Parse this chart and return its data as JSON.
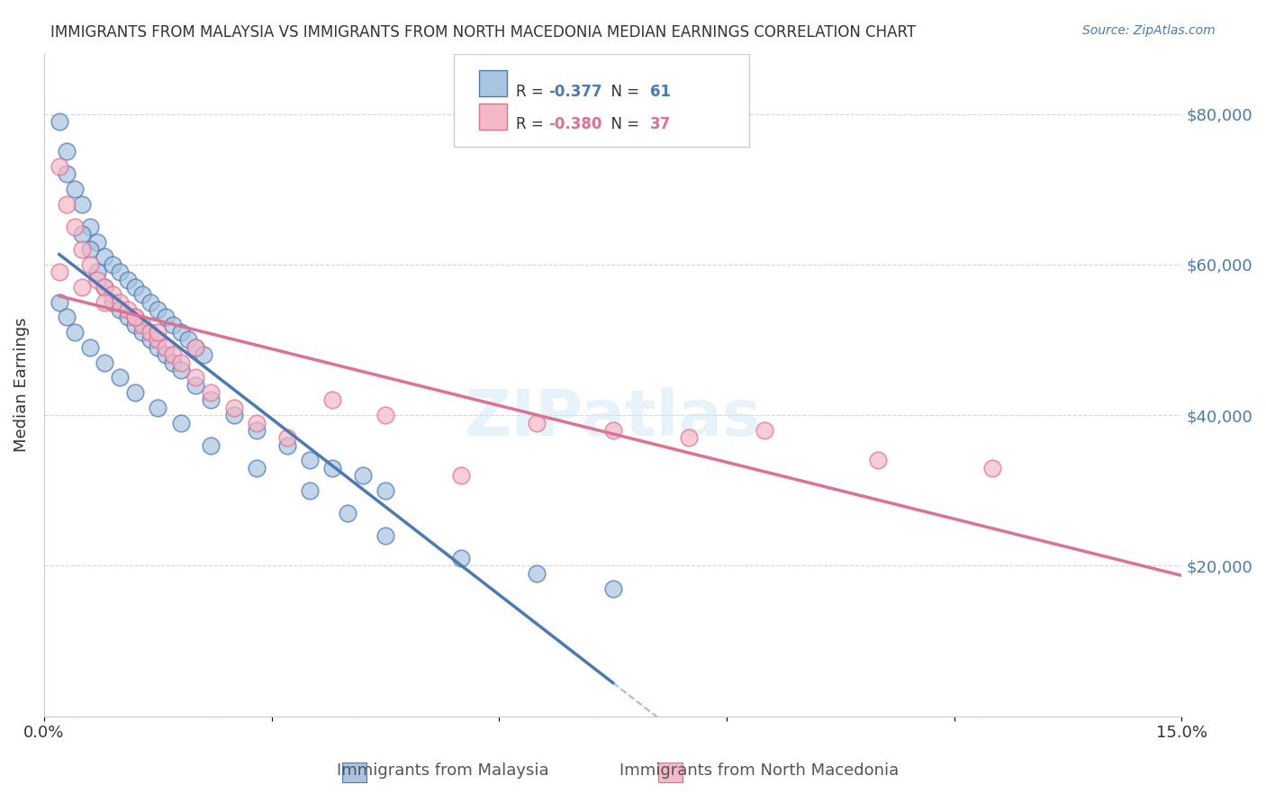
{
  "title": "IMMIGRANTS FROM MALAYSIA VS IMMIGRANTS FROM NORTH MACEDONIA MEDIAN EARNINGS CORRELATION CHART",
  "source": "Source: ZipAtlas.com",
  "xlabel_bottom": "",
  "ylabel": "Median Earnings",
  "xlim": [
    0.0,
    0.15
  ],
  "ylim": [
    0,
    88000
  ],
  "xticks": [
    0.0,
    0.03,
    0.06,
    0.09,
    0.12,
    0.15
  ],
  "xticklabels": [
    "0.0%",
    "",
    "",
    "",
    "",
    "15.0%"
  ],
  "yticks": [
    0,
    20000,
    40000,
    60000,
    80000
  ],
  "yticklabels": [
    "",
    "$20,000",
    "$40,000",
    "$60,000",
    "$80,000"
  ],
  "legend_blue_label": "R = -0.377   N = 61",
  "legend_pink_label": "R = -0.380   N = 37",
  "blue_R": -0.377,
  "blue_N": 61,
  "pink_R": -0.38,
  "pink_N": 37,
  "blue_color": "#a8c4e0",
  "blue_line_color": "#4a7ab5",
  "pink_color": "#f4b8c8",
  "pink_line_color": "#e07090",
  "watermark": "ZIPatlas",
  "malaysia_x": [
    0.002,
    0.003,
    0.004,
    0.005,
    0.006,
    0.007,
    0.008,
    0.009,
    0.01,
    0.011,
    0.012,
    0.013,
    0.014,
    0.015,
    0.016,
    0.017,
    0.018,
    0.019,
    0.02,
    0.021,
    0.003,
    0.005,
    0.006,
    0.007,
    0.008,
    0.009,
    0.01,
    0.011,
    0.012,
    0.013,
    0.014,
    0.015,
    0.016,
    0.017,
    0.018,
    0.02,
    0.022,
    0.025,
    0.028,
    0.032,
    0.035,
    0.038,
    0.042,
    0.045,
    0.002,
    0.003,
    0.004,
    0.006,
    0.008,
    0.01,
    0.012,
    0.015,
    0.018,
    0.022,
    0.028,
    0.035,
    0.04,
    0.045,
    0.055,
    0.065,
    0.075
  ],
  "malaysia_y": [
    79000,
    72000,
    70000,
    68000,
    65000,
    63000,
    61000,
    60000,
    59000,
    58000,
    57000,
    56000,
    55000,
    54000,
    53000,
    52000,
    51000,
    50000,
    49000,
    48000,
    75000,
    64000,
    62000,
    59000,
    57000,
    55000,
    54000,
    53000,
    52000,
    51000,
    50000,
    49000,
    48000,
    47000,
    46000,
    44000,
    42000,
    40000,
    38000,
    36000,
    34000,
    33000,
    32000,
    30000,
    55000,
    53000,
    51000,
    49000,
    47000,
    45000,
    43000,
    41000,
    39000,
    36000,
    33000,
    30000,
    27000,
    24000,
    21000,
    19000,
    17000
  ],
  "macedonia_x": [
    0.002,
    0.003,
    0.004,
    0.005,
    0.006,
    0.007,
    0.008,
    0.009,
    0.01,
    0.011,
    0.012,
    0.013,
    0.014,
    0.015,
    0.016,
    0.017,
    0.018,
    0.02,
    0.022,
    0.025,
    0.028,
    0.032,
    0.038,
    0.045,
    0.055,
    0.065,
    0.075,
    0.085,
    0.095,
    0.11,
    0.125,
    0.002,
    0.005,
    0.008,
    0.012,
    0.015,
    0.02
  ],
  "macedonia_y": [
    73000,
    68000,
    65000,
    62000,
    60000,
    58000,
    57000,
    56000,
    55000,
    54000,
    53000,
    52000,
    51000,
    50000,
    49000,
    48000,
    47000,
    45000,
    43000,
    41000,
    39000,
    37000,
    42000,
    40000,
    32000,
    39000,
    38000,
    37000,
    38000,
    34000,
    33000,
    59000,
    57000,
    55000,
    53000,
    51000,
    49000
  ]
}
